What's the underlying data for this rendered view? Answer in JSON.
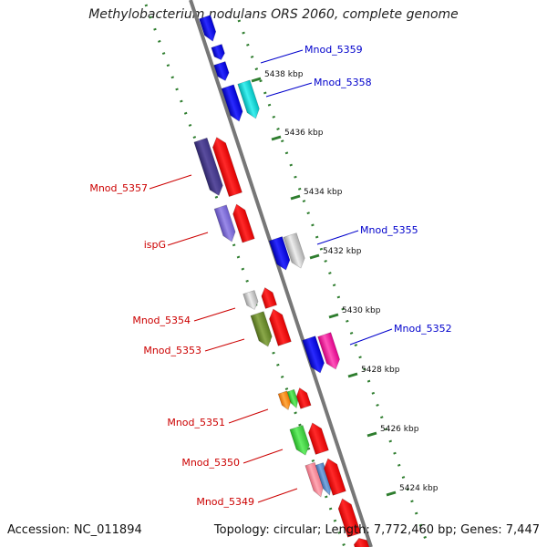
{
  "title": "Methylobacterium nodulans ORS 2060, complete genome",
  "footer": {
    "accession": "Accession: NC_011894",
    "summary": "Topology: circular; Length: 7,772,460 bp; Genes: 7,447"
  },
  "colors": {
    "forward_label": "#cc0000",
    "reverse_label": "#0000cc",
    "tick": "#2e7d2e",
    "backbone": "#888888"
  },
  "ticks": [
    "5438 kbp",
    "5436 kbp",
    "5434 kbp",
    "5432 kbp",
    "5430 kbp",
    "5428 kbp",
    "5426 kbp",
    "5424 kbp"
  ],
  "labels": [
    {
      "text": "Mnod_5359",
      "strand": "reverse"
    },
    {
      "text": "Mnod_5358",
      "strand": "reverse"
    },
    {
      "text": "Mnod_5357",
      "strand": "forward"
    },
    {
      "text": "Mnod_5355",
      "strand": "reverse"
    },
    {
      "text": "ispG",
      "strand": "forward"
    },
    {
      "text": "Mnod_5354",
      "strand": "forward"
    },
    {
      "text": "Mnod_5352",
      "strand": "reverse"
    },
    {
      "text": "Mnod_5353",
      "strand": "forward"
    },
    {
      "text": "Mnod_5351",
      "strand": "forward"
    },
    {
      "text": "Mnod_5350",
      "strand": "forward"
    },
    {
      "text": "Mnod_5349",
      "strand": "forward"
    }
  ]
}
